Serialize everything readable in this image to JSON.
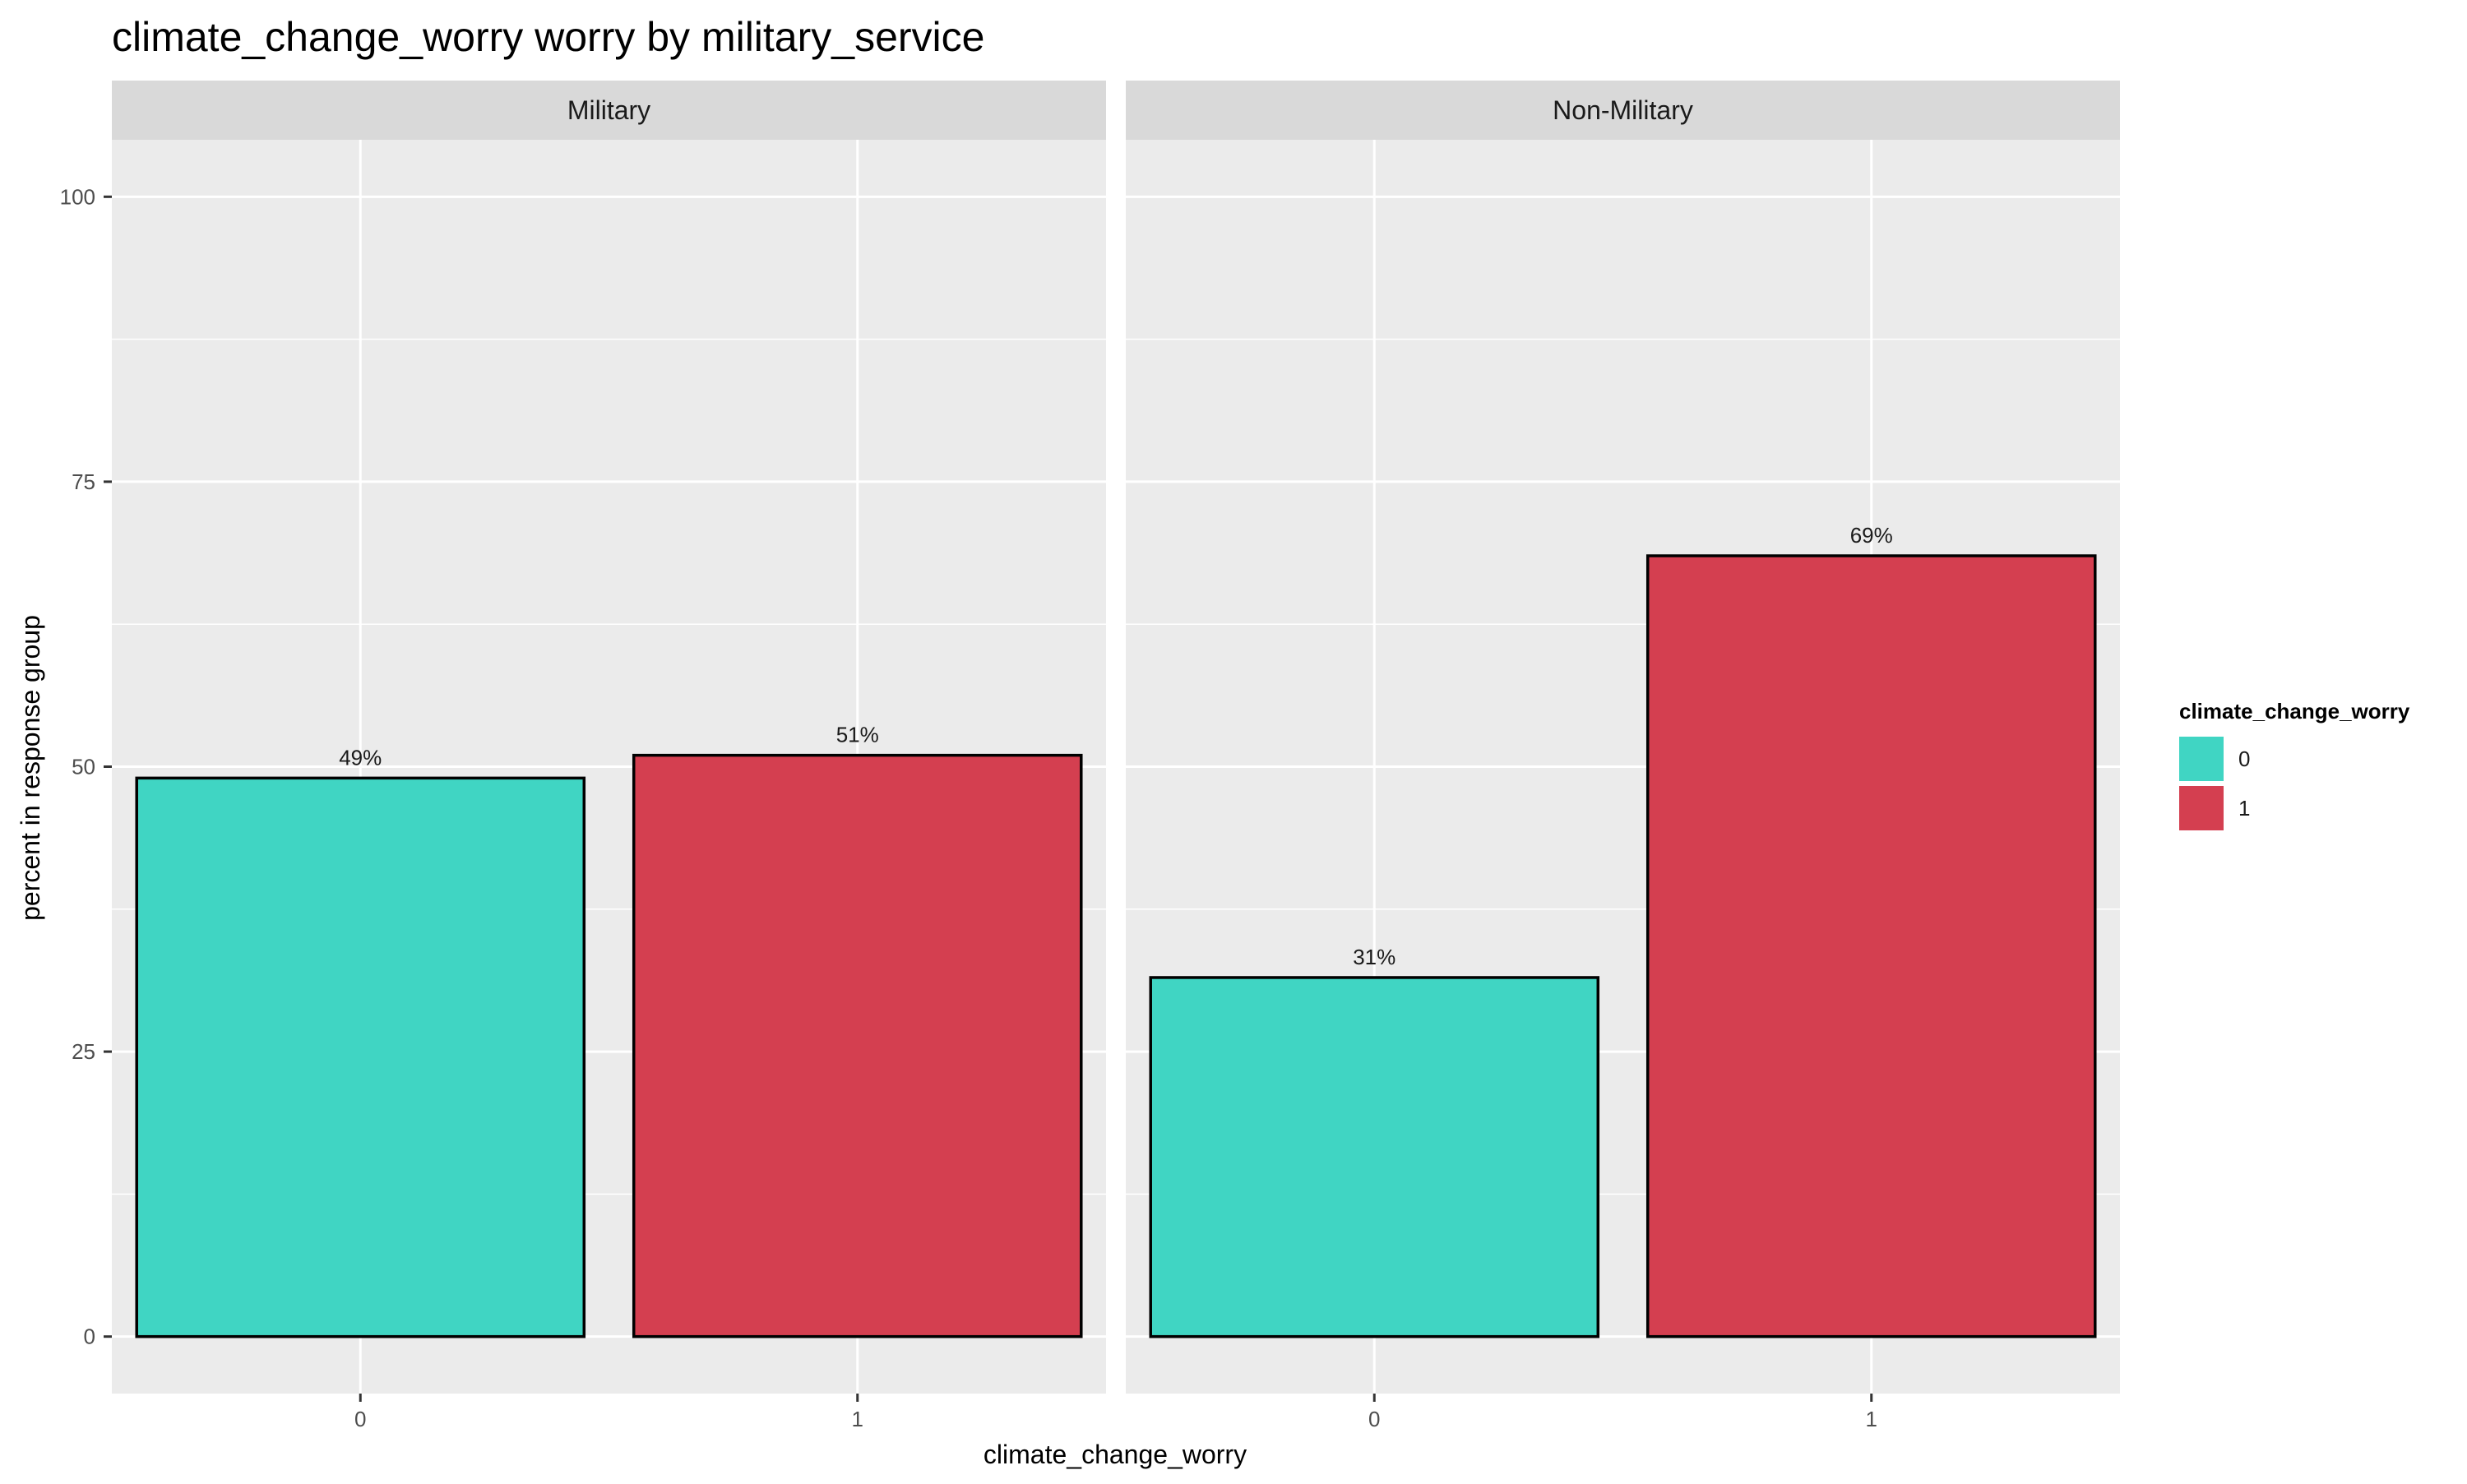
{
  "chart_data": {
    "type": "bar",
    "title": "climate_change_worry worry by military_service",
    "xlabel": "climate_change_worry",
    "ylabel": "percent in response group",
    "ylim": [
      -5,
      105
    ],
    "yticks": [
      0,
      25,
      50,
      75,
      100
    ],
    "grid": true,
    "categories": [
      "0",
      "1"
    ],
    "facets": [
      {
        "name": "Military",
        "values": [
          49,
          51
        ],
        "labels": [
          "49%",
          "51%"
        ]
      },
      {
        "name": "Non-Military",
        "values": [
          31.5,
          68.5
        ],
        "labels": [
          "31%",
          "69%"
        ]
      }
    ],
    "legend": {
      "title": "climate_change_worry",
      "position": "right",
      "entries": [
        "0",
        "1"
      ]
    },
    "colors": {
      "0": "#40d5c3",
      "1": "#d43f50",
      "panel": "#ebebeb",
      "strip": "#d9d9d9",
      "grid": "#ffffff",
      "bar_outline": "#000000"
    }
  }
}
